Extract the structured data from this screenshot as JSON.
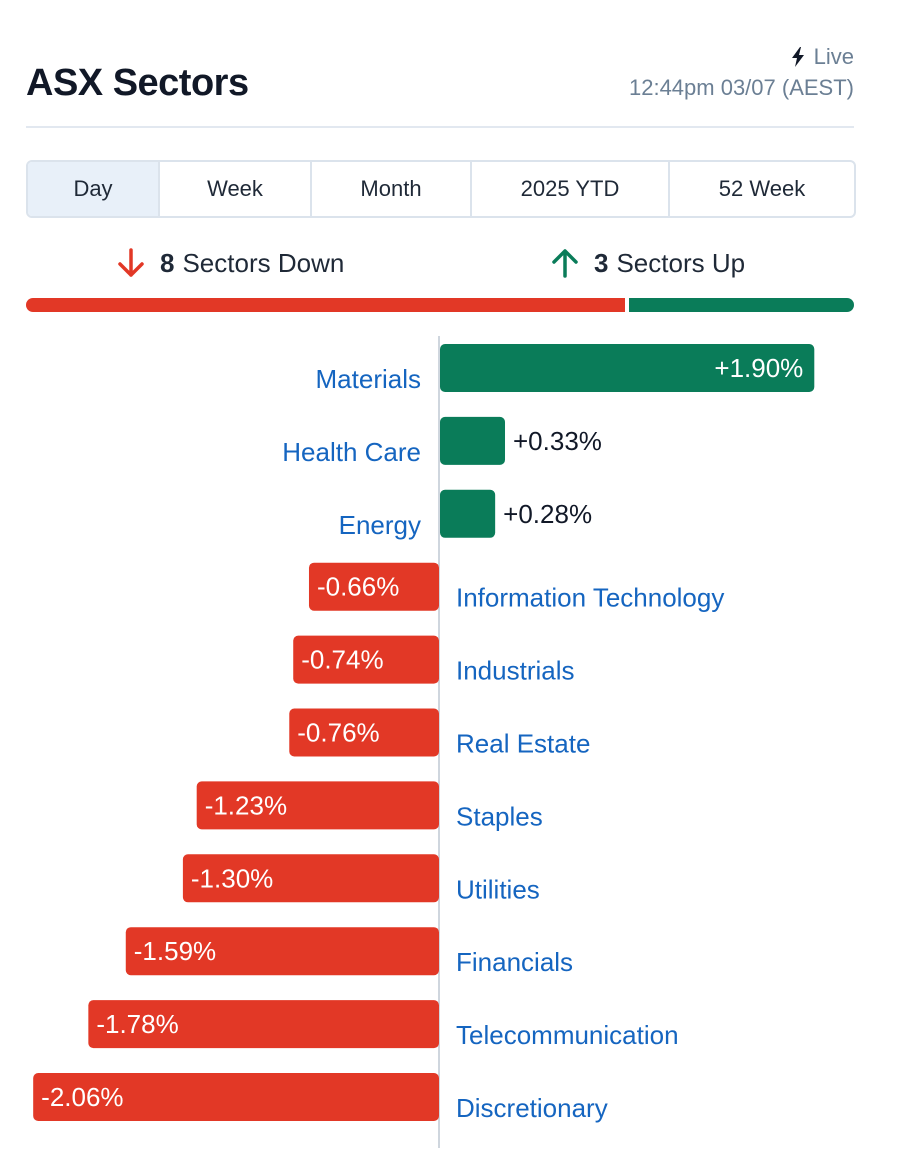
{
  "header": {
    "title": "ASX Sectors",
    "live_label": "Live",
    "timestamp": "12:44pm 03/07 (AEST)"
  },
  "tabs": [
    {
      "label": "Day",
      "active": true
    },
    {
      "label": "Week",
      "active": false
    },
    {
      "label": "Month",
      "active": false
    },
    {
      "label": "2025 YTD",
      "active": false
    },
    {
      "label": "52 Week",
      "active": false
    }
  ],
  "summary": {
    "down_count": "8",
    "down_label": "Sectors Down",
    "up_count": "3",
    "up_label": "Sectors Up"
  },
  "colors": {
    "positive": "#0a7c59",
    "negative": "#e23826",
    "label": "#1565c0"
  },
  "chart_data": {
    "type": "bar",
    "orientation": "horizontal-diverging",
    "categories": [
      "Materials",
      "Health Care",
      "Energy",
      "Information Technology",
      "Industrials",
      "Real Estate",
      "Staples",
      "Utilities",
      "Financials",
      "Telecommunication",
      "Discretionary"
    ],
    "values": [
      1.9,
      0.33,
      0.28,
      -0.66,
      -0.74,
      -0.76,
      -1.23,
      -1.3,
      -1.59,
      -1.78,
      -2.06
    ],
    "value_labels": [
      "+1.90%",
      "+0.33%",
      "+0.28%",
      "-0.66%",
      "-0.74%",
      "-0.76%",
      "-1.23%",
      "-1.30%",
      "-1.59%",
      "-1.78%",
      "-2.06%"
    ]
  }
}
